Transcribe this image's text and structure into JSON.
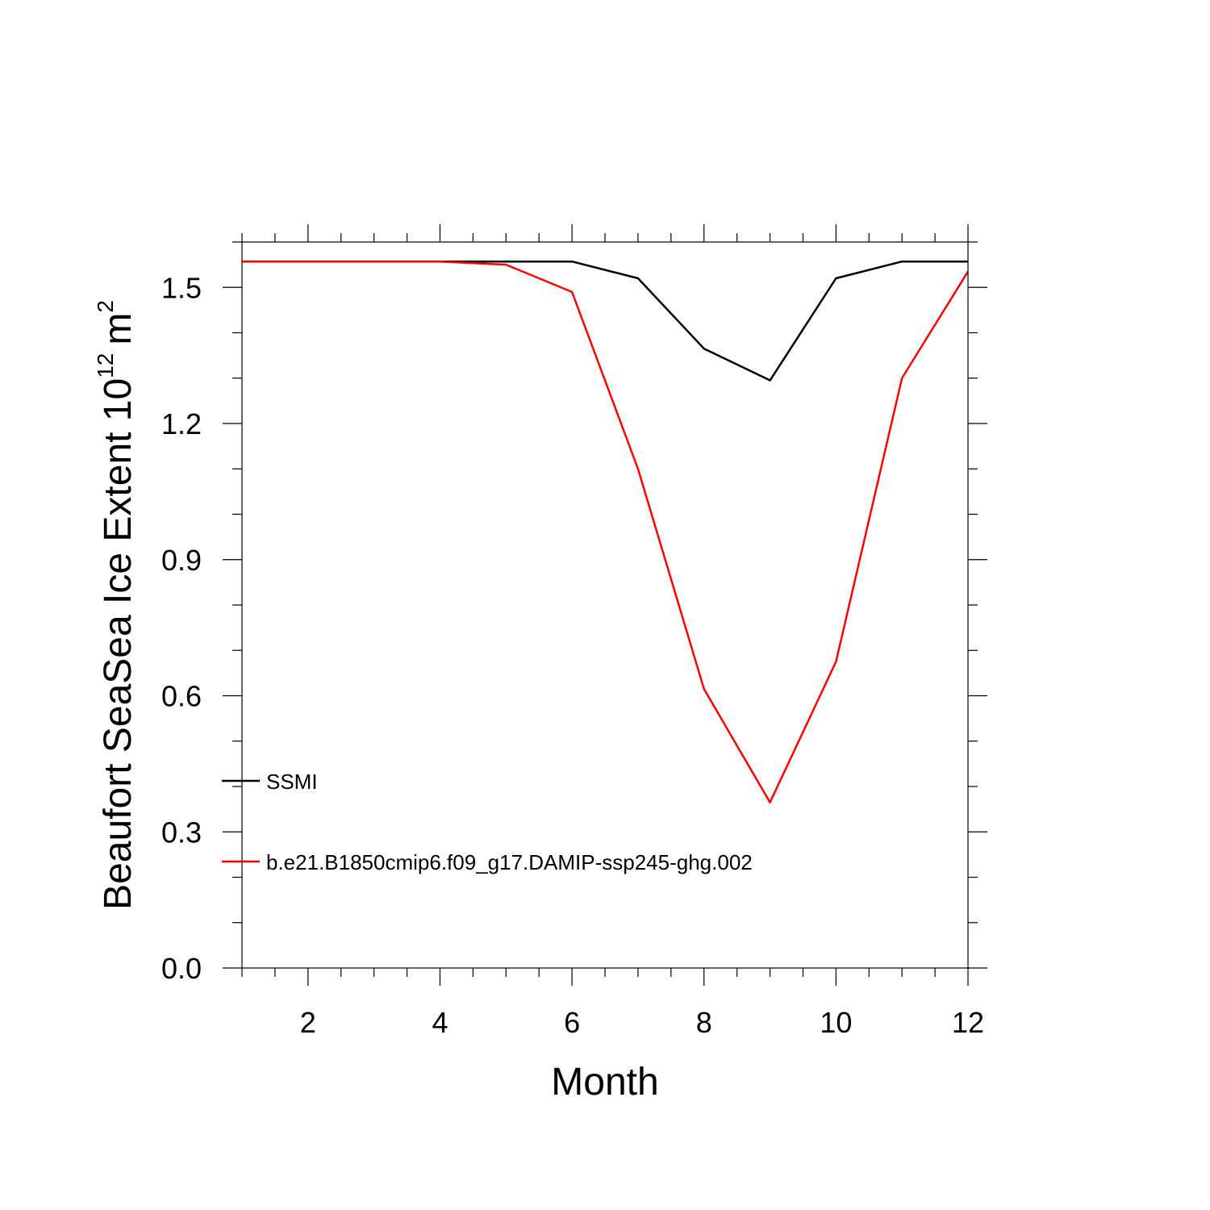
{
  "chart_data": {
    "type": "line",
    "title": "",
    "xlabel": "Month",
    "ylabel": {
      "text": "Beaufort SeaSea Ice Extent 10",
      "exponent": "12",
      "unit": "m",
      "unit_exponent": "2"
    },
    "xlim": [
      1,
      12
    ],
    "ylim": [
      0,
      1.6
    ],
    "xticks": [
      2,
      4,
      6,
      8,
      10,
      12
    ],
    "xtick_labels": [
      "2",
      "4",
      "6",
      "8",
      "10",
      "12"
    ],
    "yticks": [
      0.0,
      0.3,
      0.6,
      0.9,
      1.2,
      1.5
    ],
    "ytick_labels": [
      "0.0",
      "0.3",
      "0.6",
      "0.9",
      "1.2",
      "1.5"
    ],
    "x": [
      1,
      2,
      3,
      4,
      5,
      6,
      7,
      8,
      9,
      10,
      11,
      12
    ],
    "series": [
      {
        "name": "SSMI",
        "color": "#000000",
        "values": [
          1.557,
          1.557,
          1.557,
          1.557,
          1.557,
          1.557,
          1.52,
          1.365,
          1.295,
          1.52,
          1.557,
          1.557
        ]
      },
      {
        "name": "b.e21.B1850cmip6.f09_g17.DAMIP-ssp245-ghg.002",
        "color": "#ff0000",
        "values": [
          1.557,
          1.557,
          1.557,
          1.557,
          1.55,
          1.49,
          1.1,
          0.615,
          0.365,
          0.675,
          1.3,
          1.535
        ]
      }
    ],
    "legend_position": "lower-left inside plot",
    "grid": false
  }
}
